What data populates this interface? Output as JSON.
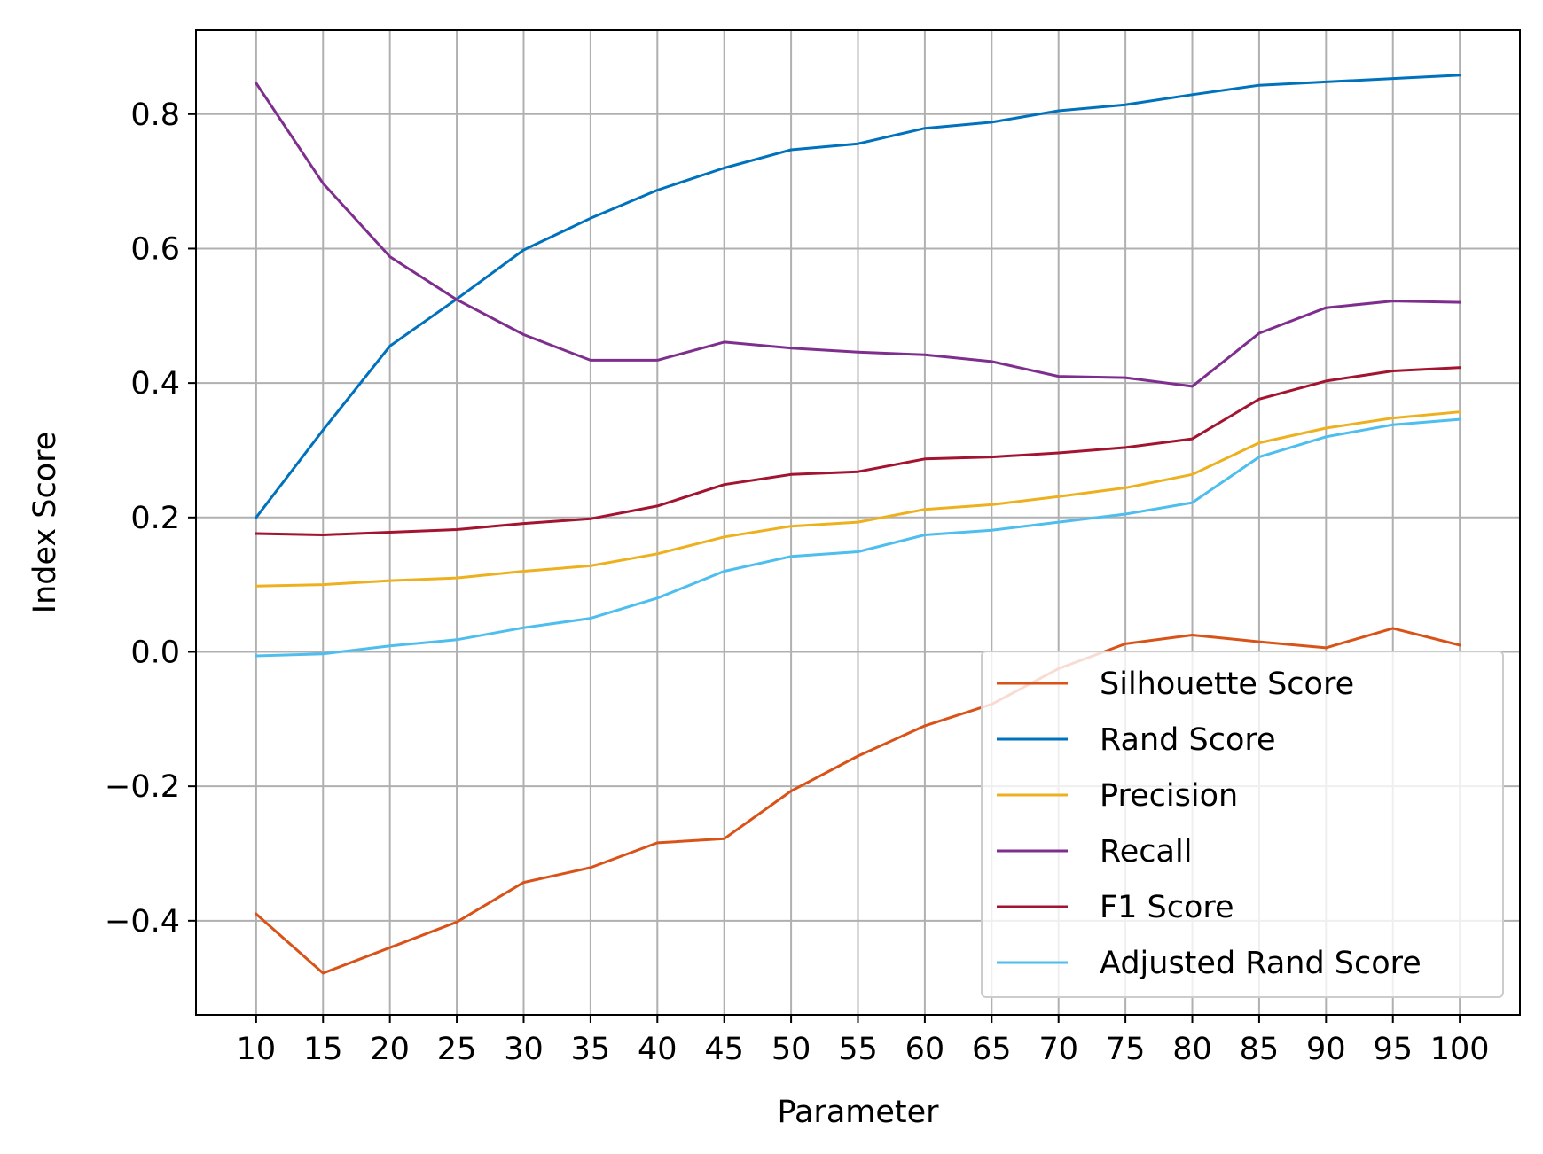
{
  "chart_data": {
    "type": "line",
    "title": "",
    "xlabel": "Parameter",
    "ylabel": "Index Score",
    "x": [
      10,
      15,
      20,
      25,
      30,
      35,
      40,
      45,
      50,
      55,
      60,
      65,
      70,
      75,
      80,
      85,
      90,
      95,
      100
    ],
    "x_ticks": [
      "10",
      "15",
      "20",
      "25",
      "30",
      "35",
      "40",
      "45",
      "50",
      "55",
      "60",
      "65",
      "70",
      "75",
      "80",
      "85",
      "90",
      "95",
      "100"
    ],
    "xlim": [
      5.5,
      104.5
    ],
    "y_ticks": [
      {
        "value": 0.8,
        "label": "0.8"
      },
      {
        "value": 0.6,
        "label": "0.6"
      },
      {
        "value": 0.4,
        "label": "0.4"
      },
      {
        "value": 0.2,
        "label": "0.2"
      },
      {
        "value": 0.0,
        "label": "0.0"
      },
      {
        "value": -0.2,
        "label": "−0.2"
      },
      {
        "value": -0.4,
        "label": "−0.4"
      }
    ],
    "ylim": [
      -0.54,
      0.925
    ],
    "grid": true,
    "legend_position": "lower right",
    "series": [
      {
        "name": "Silhouette Score",
        "color": "#d95319",
        "values": [
          -0.39,
          -0.478,
          -0.44,
          -0.402,
          -0.343,
          -0.321,
          -0.284,
          -0.278,
          -0.207,
          -0.155,
          -0.11,
          -0.078,
          -0.025,
          0.012,
          0.025,
          0.015,
          0.006,
          0.035,
          0.01
        ]
      },
      {
        "name": "Rand Score",
        "color": "#0072bd",
        "values": [
          0.2,
          0.33,
          0.455,
          0.525,
          0.598,
          0.645,
          0.687,
          0.72,
          0.747,
          0.756,
          0.779,
          0.788,
          0.805,
          0.814,
          0.829,
          0.843,
          0.848,
          0.853,
          0.858
        ]
      },
      {
        "name": "Precision",
        "color": "#edb120",
        "values": [
          0.098,
          0.1,
          0.106,
          0.11,
          0.12,
          0.128,
          0.146,
          0.171,
          0.187,
          0.193,
          0.212,
          0.219,
          0.231,
          0.244,
          0.264,
          0.311,
          0.333,
          0.348,
          0.357
        ]
      },
      {
        "name": "Recall",
        "color": "#7e2f8e",
        "values": [
          0.846,
          0.697,
          0.588,
          0.524,
          0.472,
          0.434,
          0.434,
          0.461,
          0.452,
          0.446,
          0.442,
          0.432,
          0.41,
          0.408,
          0.395,
          0.474,
          0.512,
          0.522,
          0.52
        ]
      },
      {
        "name": "F1 Score",
        "color": "#a2142f",
        "values": [
          0.176,
          0.174,
          0.178,
          0.182,
          0.191,
          0.198,
          0.217,
          0.249,
          0.264,
          0.268,
          0.287,
          0.29,
          0.296,
          0.304,
          0.317,
          0.376,
          0.403,
          0.418,
          0.423
        ]
      },
      {
        "name": "Adjusted Rand Score",
        "color": "#4dbeee",
        "values": [
          -0.006,
          -0.003,
          0.009,
          0.018,
          0.036,
          0.05,
          0.08,
          0.12,
          0.142,
          0.149,
          0.174,
          0.181,
          0.193,
          0.205,
          0.222,
          0.29,
          0.32,
          0.338,
          0.346
        ]
      }
    ]
  }
}
